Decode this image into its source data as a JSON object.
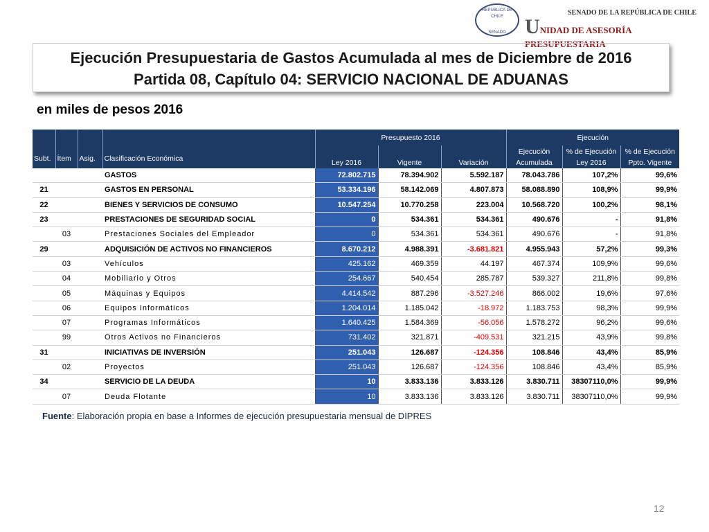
{
  "header": {
    "seal_top": "REPÚBLICA DE CHILE",
    "seal_bottom": "SENADO",
    "senado": "SENADO DE LA REPÚBLICA DE CHILE",
    "unidad": "UNIDAD DE ASESORÍA PRESUPUESTARIA"
  },
  "title": {
    "line1": "Ejecución Presupuestaria de Gastos Acumulada al mes de Diciembre de 2016",
    "line2": "Partida 08, Capítulo 04: SERVICIO NACIONAL DE ADUANAS"
  },
  "subtitle": "en miles de pesos 2016",
  "table": {
    "groups": [
      "Presupuesto 2016",
      "Ejecución"
    ],
    "columns": [
      "Subt.",
      "Ítem",
      "Asig.",
      "Clasificación Económica",
      "Ley 2016",
      "Vigente",
      "Variación",
      "Ejecución Acumulada",
      "% de Ejecución Ley 2016",
      "% de Ejecución Ppto. Vigente"
    ],
    "rows": [
      {
        "label": "GASTOS",
        "values": [
          "72.802.715",
          "78.394.902",
          "5.592.187",
          "78.043.786",
          "107,2%",
          "99,6%"
        ]
      },
      {
        "subt": "21",
        "label": "GASTOS EN PERSONAL",
        "values": [
          "53.334.196",
          "58.142.069",
          "4.807.873",
          "58.088.890",
          "108,9%",
          "99,9%"
        ]
      },
      {
        "subt": "22",
        "label": "BIENES Y SERVICIOS DE CONSUMO",
        "values": [
          "10.547.254",
          "10.770.258",
          "223.004",
          "10.568.720",
          "100,2%",
          "98,1%"
        ]
      },
      {
        "subt": "23",
        "label": "PRESTACIONES DE SEGURIDAD SOCIAL",
        "values": [
          "0",
          "534.361",
          "534.361",
          "490.676",
          "-",
          "91,8%"
        ]
      },
      {
        "item": "03",
        "label": "Prestaciones Sociales del Empleador",
        "values": [
          "0",
          "534.361",
          "534.361",
          "490.676",
          "-",
          "91,8%"
        ]
      },
      {
        "subt": "29",
        "label": "ADQUISICIÓN DE ACTIVOS NO FINANCIEROS",
        "values": [
          "8.670.212",
          "4.988.391",
          "-3.681.821",
          "4.955.943",
          "57,2%",
          "99,3%"
        ]
      },
      {
        "item": "03",
        "label": "Vehículos",
        "values": [
          "425.162",
          "469.359",
          "44.197",
          "467.374",
          "109,9%",
          "99,6%"
        ]
      },
      {
        "item": "04",
        "label": "Mobiliario y Otros",
        "values": [
          "254.667",
          "540.454",
          "285.787",
          "539.327",
          "211,8%",
          "99,8%"
        ]
      },
      {
        "item": "05",
        "label": "Máquinas y Equipos",
        "values": [
          "4.414.542",
          "887.296",
          "-3.527.246",
          "866.002",
          "19,6%",
          "97,6%"
        ]
      },
      {
        "item": "06",
        "label": "Equipos Informáticos",
        "values": [
          "1.204.014",
          "1.185.042",
          "-18.972",
          "1.183.753",
          "98,3%",
          "99,9%"
        ]
      },
      {
        "item": "07",
        "label": "Programas Informáticos",
        "values": [
          "1.640.425",
          "1.584.369",
          "-56.056",
          "1.578.272",
          "96,2%",
          "99,6%"
        ]
      },
      {
        "item": "99",
        "label": "Otros Activos no Financieros",
        "values": [
          "731.402",
          "321.871",
          "-409.531",
          "321.215",
          "43,9%",
          "99,8%"
        ]
      },
      {
        "subt": "31",
        "label": "INICIATIVAS DE INVERSIÓN",
        "values": [
          "251.043",
          "126.687",
          "-124.356",
          "108.846",
          "43,4%",
          "85,9%"
        ]
      },
      {
        "item": "02",
        "label": "Proyectos",
        "values": [
          "251.043",
          "126.687",
          "-124.356",
          "108.846",
          "43,4%",
          "85,9%"
        ]
      },
      {
        "subt": "34",
        "label": "SERVICIO DE LA DEUDA",
        "values": [
          "10",
          "3.833.136",
          "3.833.126",
          "3.830.711",
          "38307110,0%",
          "99,9%"
        ]
      },
      {
        "item": "07",
        "label": "Deuda Flotante",
        "values": [
          "10",
          "3.833.136",
          "3.833.126",
          "3.830.711",
          "38307110,0%",
          "99,9%"
        ]
      }
    ]
  },
  "footer": {
    "source_label": "Fuente",
    "source_text": ": Elaboración propia en base  a Informes de ejecución presupuestaria mensual de DIPRES",
    "page": "12"
  }
}
